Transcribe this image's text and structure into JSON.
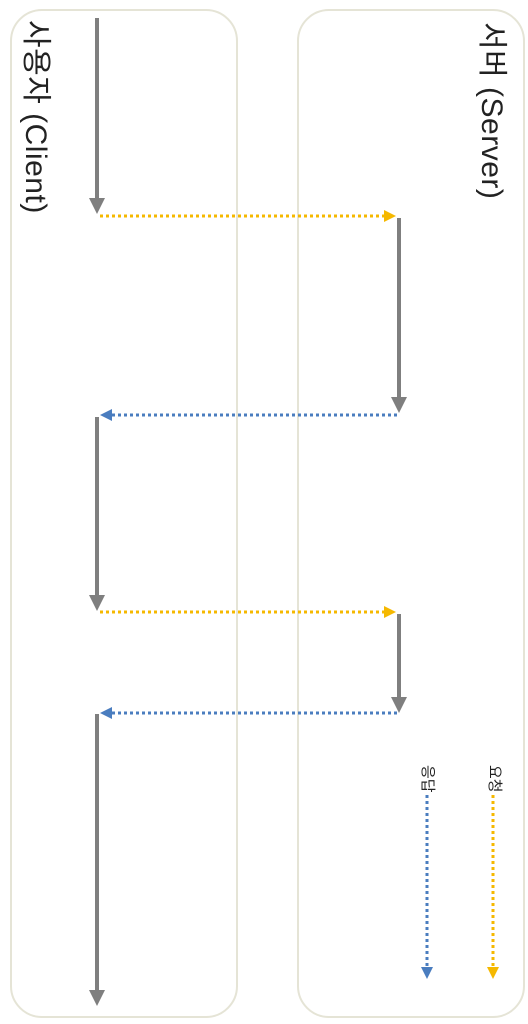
{
  "lanes": {
    "client": {
      "title": "사용자 (Client)"
    },
    "server": {
      "title": "서버 (Server)"
    }
  },
  "legend": {
    "request": {
      "label": "요청",
      "color": "#f5b800"
    },
    "response": {
      "label": "응답",
      "color": "#4a7dbf"
    }
  },
  "colors": {
    "processing": "#7f7f7f",
    "lane_border": "#e5e4d6"
  }
}
